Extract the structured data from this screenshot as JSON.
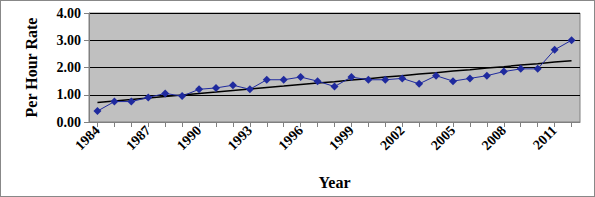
{
  "chart_data": {
    "type": "line",
    "x_label": "Year",
    "y_label": "Per Hour Rate",
    "categories": [
      "1984",
      null,
      null,
      "1987",
      null,
      null,
      "1990",
      null,
      null,
      "1993",
      null,
      null,
      "1996",
      null,
      null,
      "1999",
      null,
      null,
      "2002",
      null,
      null,
      "2005",
      null,
      null,
      "2008",
      null,
      null,
      "2011",
      null
    ],
    "series": [
      {
        "color": "#1f2a9e",
        "marker": "diamond",
        "line_style": "solid",
        "values": [
          0.4,
          0.75,
          0.75,
          0.9,
          1.05,
          0.95,
          1.2,
          1.25,
          1.35,
          1.2,
          1.55,
          1.55,
          1.65,
          1.5,
          1.3,
          1.65,
          1.55,
          1.55,
          1.6,
          1.4,
          1.7,
          1.5,
          1.6,
          1.7,
          1.85,
          1.95,
          1.95,
          2.65,
          3.0
        ]
      },
      {
        "color": "#000000",
        "marker": "none",
        "line_style": "solid",
        "values": [
          0.72,
          0.77,
          0.83,
          0.88,
          0.94,
          0.99,
          1.05,
          1.1,
          1.16,
          1.21,
          1.27,
          1.32,
          1.38,
          1.43,
          1.48,
          1.54,
          1.59,
          1.65,
          1.7,
          1.76,
          1.81,
          1.87,
          1.92,
          1.98,
          2.03,
          2.09,
          2.14,
          2.2,
          2.25
        ]
      }
    ],
    "ylim": [
      0,
      4
    ],
    "yticks": [
      {
        "value": 0,
        "label": "0.00"
      },
      {
        "value": 1,
        "label": "1.00"
      },
      {
        "value": 2,
        "label": "2.00"
      },
      {
        "value": 3,
        "label": "3.00"
      },
      {
        "value": 4,
        "label": "4.00"
      }
    ],
    "grid": true
  }
}
